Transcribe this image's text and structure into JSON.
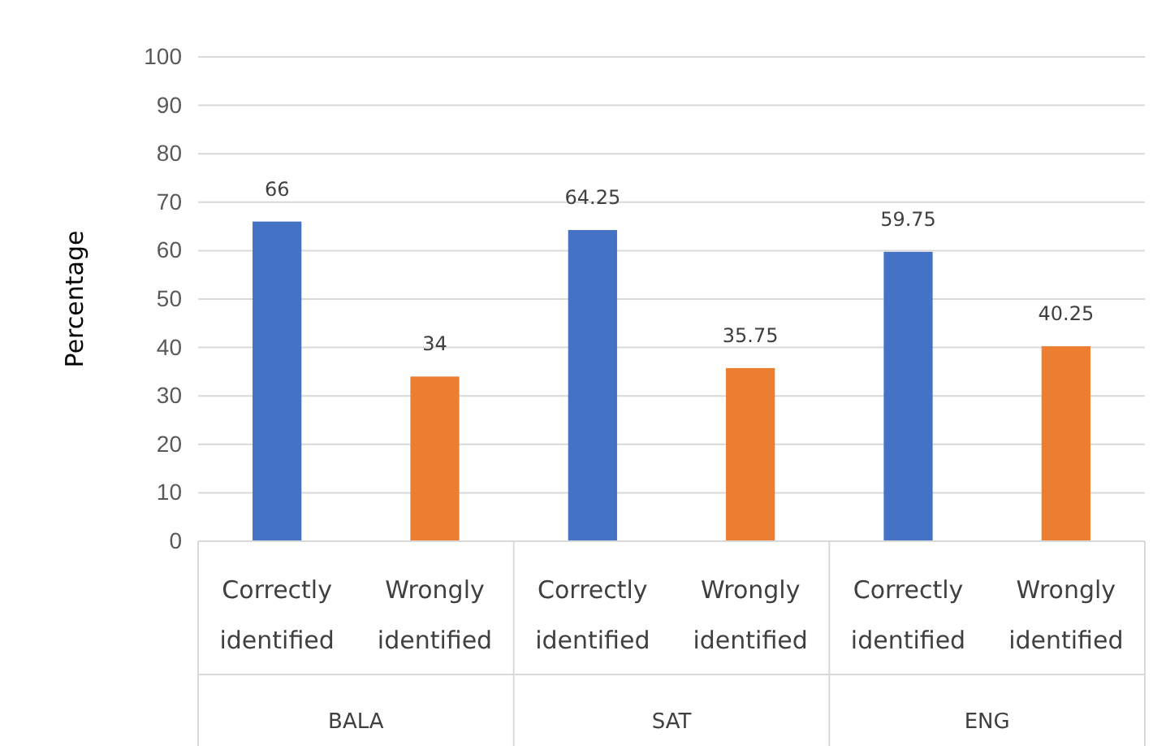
{
  "chart_data": {
    "type": "bar",
    "categories": [
      "Correctly identified",
      "Wrongly identified",
      "Correctly identified",
      "Wrongly identified",
      "Correctly identified",
      "Wrongly identified"
    ],
    "values": [
      66,
      34,
      64.25,
      35.75,
      59.75,
      40.25
    ],
    "colors": [
      "#4472c4",
      "#ed7d31",
      "#4472c4",
      "#ed7d31",
      "#4472c4",
      "#ed7d31"
    ],
    "ylabel": "Percentage",
    "ylim": [
      0,
      100
    ],
    "yticks": [
      0,
      10,
      20,
      30,
      40,
      50,
      60,
      70,
      80,
      90,
      100
    ],
    "grid": "y",
    "data_labels": true,
    "annotations": [
      "BALA",
      "SAT",
      "ENG"
    ]
  }
}
